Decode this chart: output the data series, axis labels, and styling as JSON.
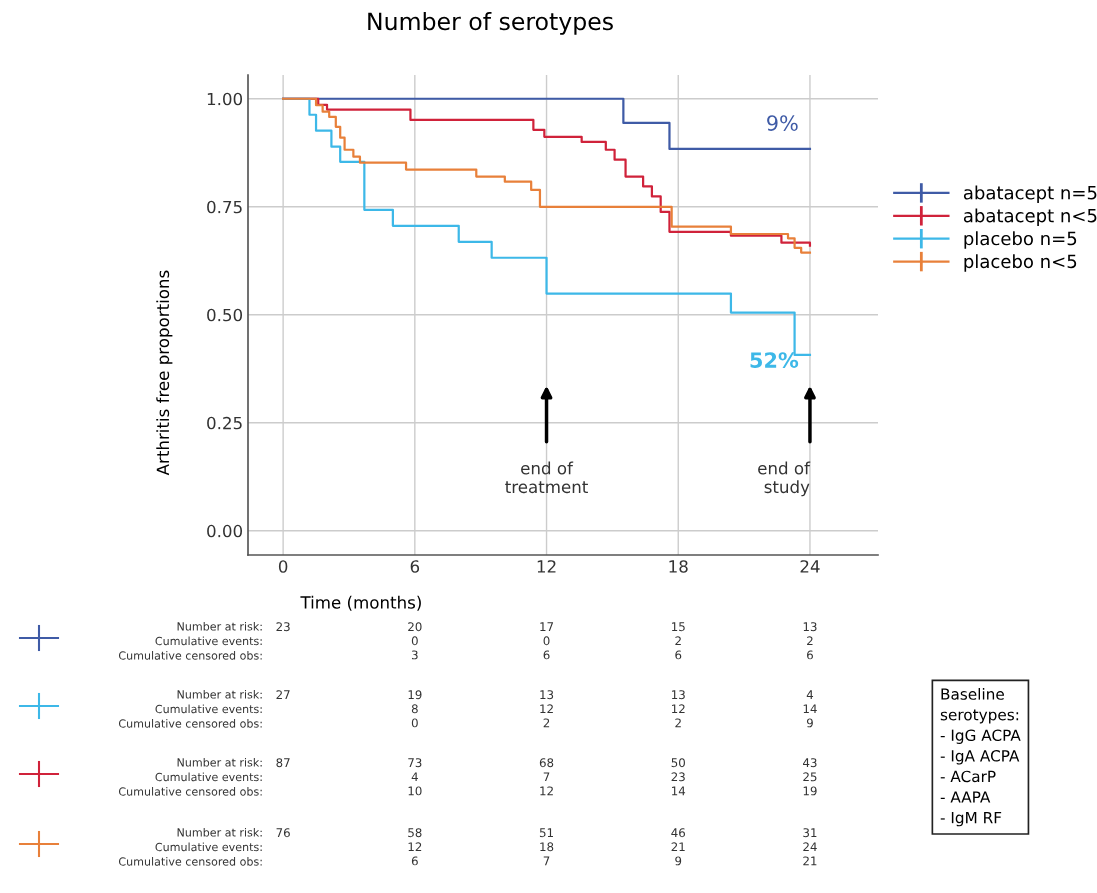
{
  "chart_data": {
    "type": "step",
    "title": "Number of serotypes",
    "xlabel": "Time (months)",
    "ylabel": "Arthritis free proportions",
    "series": [
      {
        "name": "abatacept n=5",
        "color": "#3f5ba6",
        "x": [
          0,
          15.5,
          17.6,
          24
        ],
        "values": [
          1.0,
          0.944,
          0.884,
          0.884
        ]
      },
      {
        "name": "abatacept n<5",
        "color": "#d0223a",
        "x": [
          0,
          1.6,
          2.0,
          5.8,
          11.4,
          11.9,
          13.6,
          14.7,
          15.1,
          15.6,
          16.4,
          16.8,
          17.2,
          17.6,
          20.4,
          22.7,
          24
        ],
        "values": [
          1.0,
          0.986,
          0.975,
          0.951,
          0.928,
          0.912,
          0.9,
          0.882,
          0.859,
          0.82,
          0.797,
          0.774,
          0.738,
          0.692,
          0.683,
          0.667,
          0.66
        ]
      },
      {
        "name": "placebo n=5",
        "color": "#3db8e8",
        "x": [
          0,
          1.2,
          1.5,
          2.2,
          2.6,
          3.7,
          5.0,
          8.0,
          9.5,
          12.0,
          20.4,
          23.3,
          24
        ],
        "values": [
          1.0,
          0.963,
          0.926,
          0.889,
          0.854,
          0.743,
          0.706,
          0.669,
          0.632,
          0.549,
          0.505,
          0.407,
          0.407
        ]
      },
      {
        "name": "placebo n<5",
        "color": "#e8803a",
        "x": [
          0,
          1.5,
          1.8,
          2.1,
          2.4,
          2.6,
          2.8,
          3.2,
          3.5,
          5.6,
          8.8,
          10.1,
          11.3,
          11.7,
          17.2,
          17.7,
          20.4,
          23.0,
          23.3,
          23.6,
          24
        ],
        "values": [
          1.0,
          0.985,
          0.97,
          0.958,
          0.935,
          0.91,
          0.882,
          0.866,
          0.852,
          0.836,
          0.82,
          0.808,
          0.789,
          0.75,
          0.75,
          0.704,
          0.687,
          0.677,
          0.655,
          0.644,
          0.644
        ]
      }
    ],
    "xlim": [
      -1.6,
      27.1
    ],
    "xticks": [
      0,
      6,
      12,
      18,
      24
    ],
    "ylim": [
      -0.056,
      1.055
    ],
    "yticks": [
      {
        "value": 0,
        "label": "0.00"
      },
      {
        "value": 0.25,
        "label": "0.25"
      },
      {
        "value": 0.5,
        "label": "0.50"
      },
      {
        "value": 0.75,
        "label": "0.75"
      },
      {
        "value": 1.0,
        "label": "1.00"
      }
    ],
    "grid": true,
    "legend": "right",
    "annotations": [
      {
        "text": "9%",
        "x": 24,
        "y": 0.884
      },
      {
        "text": "52%",
        "x": 24,
        "y": 0.407
      },
      "end of\ntreatment",
      "end of\nstudy",
      "Number at risk:\nCumulative events:\nCumulative censored obs:",
      "23",
      "20\n0\n3",
      "17\n0\n6",
      "15\n2\n6",
      "13\n2\n6",
      "Number at risk:\nCumulative events:\nCumulative censored obs:",
      "27",
      "19\n8\n0",
      "13\n12\n2",
      "13\n12\n2",
      "4\n14\n9",
      "Number at risk:\nCumulative events:\nCumulative censored obs:",
      "87",
      "73\n4\n10",
      "68\n7\n12",
      "50\n23\n14",
      "43\n25\n19",
      "Number at risk:\nCumulative events:\nCumulative censored obs:",
      "76",
      "58\n12\n6",
      "51\n18\n7",
      "46\n21\n9",
      "31\n24\n21",
      "Baseline\nserotypes:\n- IgG ACPA\n- IgA ACPA\n- ACarP\n- AAPA\n- IgM RF"
    ]
  }
}
